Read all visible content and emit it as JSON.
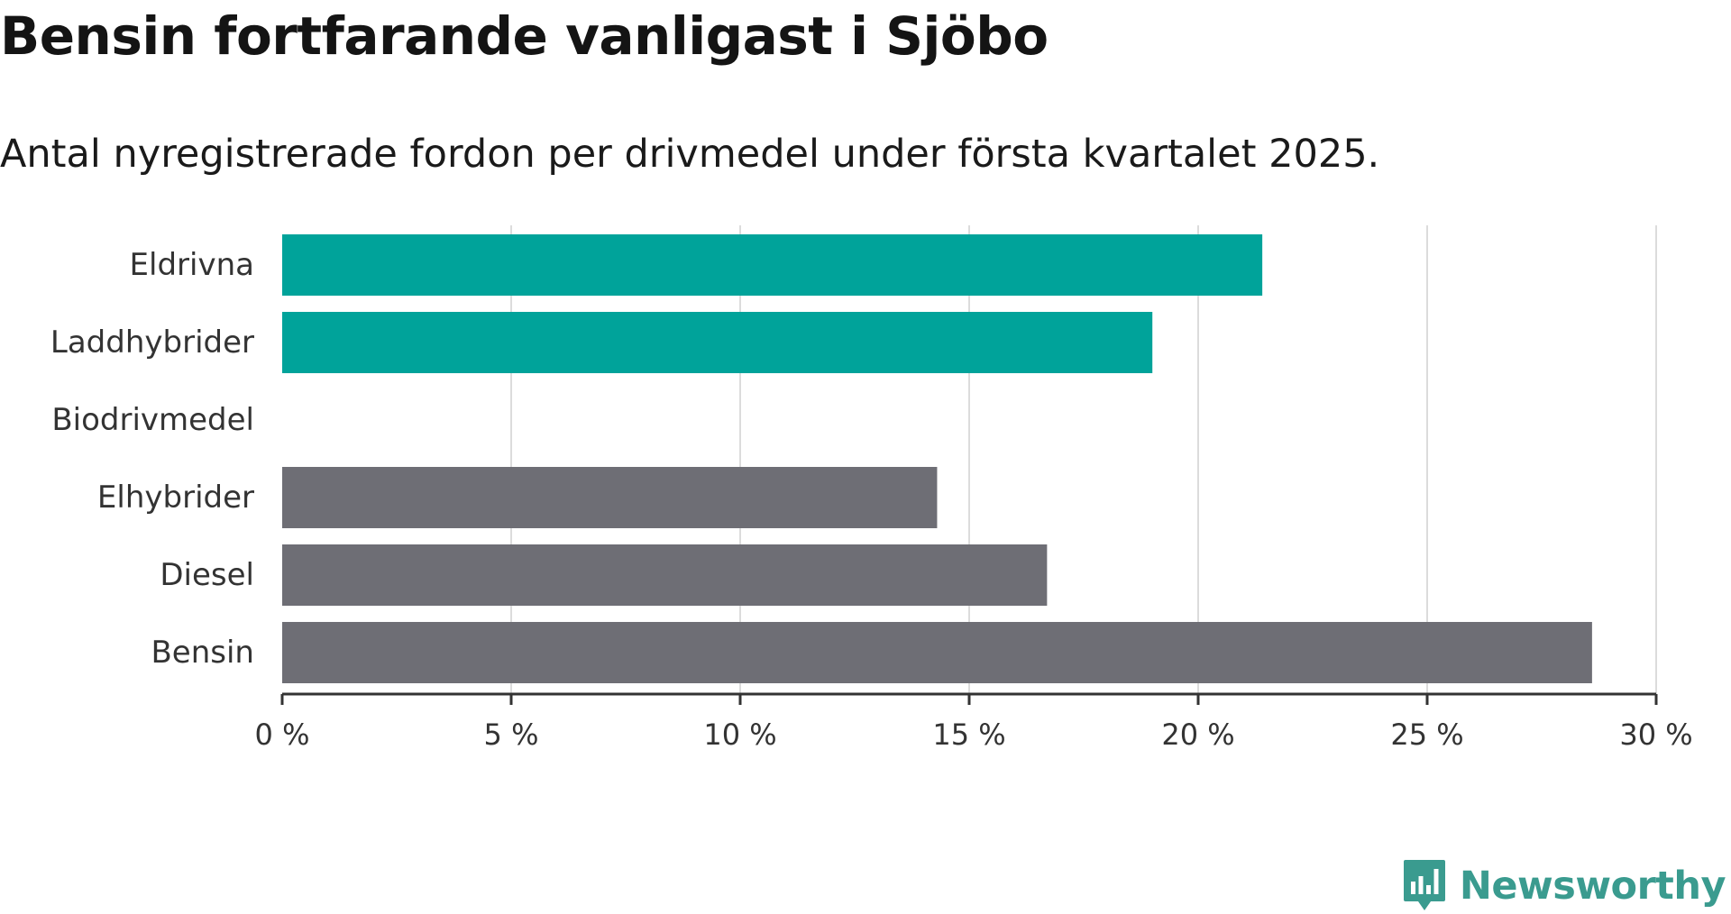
{
  "title": "Bensin fortfarande vanligast i Sjöbo",
  "subtitle": "Antal nyregistrerade fordon per drivmedel under första kvartalet 2025.",
  "brand": {
    "name": "Newsworthy",
    "icon": "newsworthy-logo-icon",
    "color": "#3a9b8f"
  },
  "chart_data": {
    "type": "bar",
    "orientation": "horizontal",
    "categories": [
      "Eldrivna",
      "Laddhybrider",
      "Biodrivmedel",
      "Elhybrider",
      "Diesel",
      "Bensin"
    ],
    "values": [
      21.4,
      19.0,
      0,
      14.3,
      16.7,
      28.6
    ],
    "colors": [
      "#00a39a",
      "#00a39a",
      "#00a39a",
      "#6e6e75",
      "#6e6e75",
      "#6e6e75"
    ],
    "xlim": [
      0,
      30
    ],
    "ticks": [
      0,
      5,
      10,
      15,
      20,
      25,
      30
    ],
    "tick_labels": [
      "0 %",
      "5 %",
      "10 %",
      "15 %",
      "20 %",
      "25 %",
      "30 %"
    ],
    "xlabel": "",
    "ylabel": "",
    "grid": true,
    "legend": "none"
  }
}
